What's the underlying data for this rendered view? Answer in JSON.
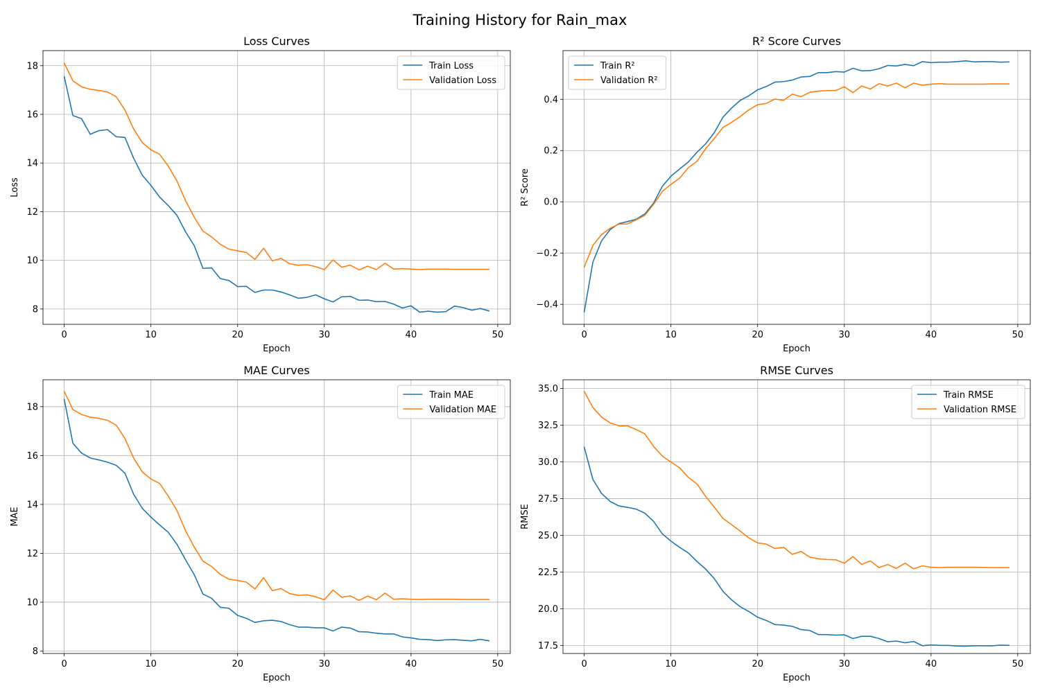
{
  "figure": {
    "suptitle": "Training History for Rain_max"
  },
  "colors": {
    "train": "#1f77b4",
    "validation": "#ff7f0e"
  },
  "chart_data": [
    {
      "type": "line",
      "title": "Loss Curves",
      "xlabel": "Epoch",
      "ylabel": "Loss",
      "grid": true,
      "legend": "upper right",
      "xlim": [
        -2.45,
        51.45
      ],
      "ylim": [
        7.37,
        18.62
      ],
      "xticks": [
        0,
        10,
        20,
        30,
        40,
        50
      ],
      "xtick_labels": [
        "0",
        "10",
        "20",
        "30",
        "40",
        "50"
      ],
      "yticks": [
        8,
        10,
        12,
        14,
        16,
        18
      ],
      "ytick_labels": [
        "8",
        "10",
        "12",
        "14",
        "16",
        "18"
      ],
      "x": [
        0,
        1,
        2,
        3,
        4,
        5,
        6,
        7,
        8,
        9,
        10,
        11,
        12,
        13,
        14,
        15,
        16,
        17,
        18,
        19,
        20,
        21,
        22,
        23,
        24,
        25,
        26,
        27,
        28,
        29,
        30,
        31,
        32,
        33,
        34,
        35,
        36,
        37,
        38,
        39,
        40,
        41,
        42,
        43,
        44,
        45,
        46,
        47,
        48,
        49
      ],
      "series": [
        {
          "name": "Train Loss",
          "color": "#1f77b4",
          "values": [
            17.55,
            15.95,
            15.82,
            15.18,
            15.33,
            15.37,
            15.08,
            15.05,
            14.2,
            13.5,
            13.08,
            12.6,
            12.25,
            11.85,
            11.17,
            10.6,
            9.67,
            9.69,
            9.25,
            9.17,
            8.92,
            8.93,
            8.68,
            8.78,
            8.78,
            8.7,
            8.58,
            8.44,
            8.48,
            8.58,
            8.42,
            8.29,
            8.5,
            8.52,
            8.36,
            8.37,
            8.3,
            8.31,
            8.2,
            8.04,
            8.13,
            7.87,
            7.91,
            7.87,
            7.89,
            8.12,
            8.06,
            7.95,
            8.02,
            7.92
          ]
        },
        {
          "name": "Validation Loss",
          "color": "#ff7f0e",
          "values": [
            18.1,
            17.38,
            17.13,
            17.03,
            16.98,
            16.92,
            16.72,
            16.18,
            15.4,
            14.84,
            14.54,
            14.36,
            13.87,
            13.26,
            12.45,
            11.77,
            11.2,
            10.96,
            10.66,
            10.46,
            10.39,
            10.32,
            10.04,
            10.5,
            9.98,
            10.08,
            9.86,
            9.8,
            9.82,
            9.74,
            9.62,
            10.02,
            9.72,
            9.8,
            9.61,
            9.76,
            9.62,
            9.88,
            9.64,
            9.66,
            9.64,
            9.62,
            9.64,
            9.64,
            9.64,
            9.63,
            9.63,
            9.63,
            9.63,
            9.63
          ]
        }
      ]
    },
    {
      "type": "line",
      "title": "R² Score Curves",
      "xlabel": "Epoch",
      "ylabel": "R² Score",
      "grid": true,
      "legend": "upper left",
      "xlim": [
        -2.45,
        51.45
      ],
      "ylim": [
        -0.478,
        0.59
      ],
      "xticks": [
        0,
        10,
        20,
        30,
        40,
        50
      ],
      "xtick_labels": [
        "0",
        "10",
        "20",
        "30",
        "40",
        "50"
      ],
      "yticks": [
        -0.4,
        -0.2,
        0.0,
        0.2,
        0.4
      ],
      "ytick_labels": [
        "−0.4",
        "−0.2",
        "0.0",
        "0.2",
        "0.4"
      ],
      "x": [
        0,
        1,
        2,
        3,
        4,
        5,
        6,
        7,
        8,
        9,
        10,
        11,
        12,
        13,
        14,
        15,
        16,
        17,
        18,
        19,
        20,
        21,
        22,
        23,
        24,
        25,
        26,
        27,
        28,
        29,
        30,
        31,
        32,
        33,
        34,
        35,
        36,
        37,
        38,
        39,
        40,
        41,
        42,
        43,
        44,
        45,
        46,
        47,
        48,
        49
      ],
      "series": [
        {
          "name": "Train R²",
          "color": "#1f77b4",
          "values": [
            -0.43,
            -0.235,
            -0.152,
            -0.108,
            -0.085,
            -0.077,
            -0.068,
            -0.047,
            -0.005,
            0.06,
            0.1,
            0.128,
            0.155,
            0.193,
            0.226,
            0.27,
            0.33,
            0.366,
            0.396,
            0.414,
            0.437,
            0.45,
            0.467,
            0.469,
            0.475,
            0.487,
            0.489,
            0.504,
            0.504,
            0.508,
            0.506,
            0.521,
            0.511,
            0.512,
            0.519,
            0.532,
            0.53,
            0.536,
            0.531,
            0.547,
            0.543,
            0.545,
            0.545,
            0.547,
            0.55,
            0.546,
            0.547,
            0.547,
            0.545,
            0.546
          ]
        },
        {
          "name": "Validation R²",
          "color": "#ff7f0e",
          "values": [
            -0.255,
            -0.17,
            -0.128,
            -0.103,
            -0.087,
            -0.086,
            -0.07,
            -0.053,
            -0.01,
            0.04,
            0.068,
            0.092,
            0.133,
            0.158,
            0.207,
            0.247,
            0.29,
            0.31,
            0.333,
            0.359,
            0.379,
            0.384,
            0.401,
            0.396,
            0.42,
            0.41,
            0.427,
            0.432,
            0.434,
            0.434,
            0.449,
            0.426,
            0.452,
            0.44,
            0.461,
            0.452,
            0.463,
            0.445,
            0.463,
            0.455,
            0.459,
            0.461,
            0.459,
            0.459,
            0.459,
            0.459,
            0.459,
            0.46,
            0.46,
            0.46
          ]
        }
      ]
    },
    {
      "type": "line",
      "title": "MAE Curves",
      "xlabel": "Epoch",
      "ylabel": "MAE",
      "grid": true,
      "legend": "upper right",
      "xlim": [
        -2.45,
        51.45
      ],
      "ylim": [
        7.9,
        19.1
      ],
      "xticks": [
        0,
        10,
        20,
        30,
        40,
        50
      ],
      "xtick_labels": [
        "0",
        "10",
        "20",
        "30",
        "40",
        "50"
      ],
      "yticks": [
        8,
        10,
        12,
        14,
        16,
        18
      ],
      "ytick_labels": [
        "8",
        "10",
        "12",
        "14",
        "16",
        "18"
      ],
      "x": [
        0,
        1,
        2,
        3,
        4,
        5,
        6,
        7,
        8,
        9,
        10,
        11,
        12,
        13,
        14,
        15,
        16,
        17,
        18,
        19,
        20,
        21,
        22,
        23,
        24,
        25,
        26,
        27,
        28,
        29,
        30,
        31,
        32,
        33,
        34,
        35,
        36,
        37,
        38,
        39,
        40,
        41,
        42,
        43,
        44,
        45,
        46,
        47,
        48,
        49
      ],
      "series": [
        {
          "name": "Train MAE",
          "color": "#1f77b4",
          "values": [
            18.3,
            16.5,
            16.1,
            15.9,
            15.82,
            15.73,
            15.6,
            15.28,
            14.42,
            13.84,
            13.48,
            13.16,
            12.86,
            12.37,
            11.73,
            11.12,
            10.33,
            10.16,
            9.79,
            9.75,
            9.46,
            9.34,
            9.17,
            9.24,
            9.26,
            9.21,
            9.08,
            8.98,
            8.98,
            8.95,
            8.95,
            8.82,
            8.98,
            8.94,
            8.79,
            8.78,
            8.73,
            8.7,
            8.7,
            8.58,
            8.54,
            8.48,
            8.47,
            8.43,
            8.46,
            8.47,
            8.44,
            8.42,
            8.48,
            8.42
          ]
        },
        {
          "name": "Validation MAE",
          "color": "#ff7f0e",
          "values": [
            18.62,
            17.88,
            17.68,
            17.57,
            17.52,
            17.44,
            17.24,
            16.7,
            15.9,
            15.33,
            15.04,
            14.86,
            14.34,
            13.75,
            12.92,
            12.25,
            11.68,
            11.46,
            11.14,
            10.94,
            10.89,
            10.82,
            10.54,
            11.0,
            10.47,
            10.56,
            10.35,
            10.28,
            10.3,
            10.22,
            10.1,
            10.5,
            10.2,
            10.26,
            10.07,
            10.25,
            10.1,
            10.37,
            10.12,
            10.14,
            10.12,
            10.11,
            10.12,
            10.12,
            10.12,
            10.12,
            10.11,
            10.11,
            10.11,
            10.11
          ]
        }
      ]
    },
    {
      "type": "line",
      "title": "RMSE Curves",
      "xlabel": "Epoch",
      "ylabel": "RMSE",
      "grid": true,
      "legend": "upper right",
      "xlim": [
        -2.45,
        51.45
      ],
      "ylim": [
        16.95,
        35.59
      ],
      "xticks": [
        0,
        10,
        20,
        30,
        40,
        50
      ],
      "xtick_labels": [
        "0",
        "10",
        "20",
        "30",
        "40",
        "50"
      ],
      "yticks": [
        17.5,
        20.0,
        22.5,
        25.0,
        27.5,
        30.0,
        32.5,
        35.0
      ],
      "ytick_labels": [
        "17.5",
        "20.0",
        "22.5",
        "25.0",
        "27.5",
        "30.0",
        "32.5",
        "35.0"
      ],
      "x": [
        0,
        1,
        2,
        3,
        4,
        5,
        6,
        7,
        8,
        9,
        10,
        11,
        12,
        13,
        14,
        15,
        16,
        17,
        18,
        19,
        20,
        21,
        22,
        23,
        24,
        25,
        26,
        27,
        28,
        29,
        30,
        31,
        32,
        33,
        34,
        35,
        36,
        37,
        38,
        39,
        40,
        41,
        42,
        43,
        44,
        45,
        46,
        47,
        48,
        49
      ],
      "series": [
        {
          "name": "Train RMSE",
          "color": "#1f77b4",
          "values": [
            31.0,
            28.8,
            27.85,
            27.3,
            27.0,
            26.9,
            26.78,
            26.5,
            25.95,
            25.1,
            24.6,
            24.18,
            23.8,
            23.22,
            22.7,
            22.05,
            21.18,
            20.6,
            20.13,
            19.8,
            19.42,
            19.2,
            18.92,
            18.88,
            18.8,
            18.58,
            18.52,
            18.24,
            18.24,
            18.2,
            18.22,
            17.97,
            18.12,
            18.12,
            17.97,
            17.75,
            17.8,
            17.68,
            17.77,
            17.48,
            17.53,
            17.5,
            17.5,
            17.46,
            17.45,
            17.48,
            17.48,
            17.47,
            17.52,
            17.5
          ]
        },
        {
          "name": "Validation RMSE",
          "color": "#ff7f0e",
          "values": [
            34.8,
            33.7,
            33.05,
            32.65,
            32.45,
            32.45,
            32.2,
            31.9,
            31.05,
            30.4,
            29.98,
            29.6,
            28.95,
            28.5,
            27.65,
            26.92,
            26.15,
            25.72,
            25.28,
            24.82,
            24.48,
            24.4,
            24.1,
            24.18,
            23.7,
            23.9,
            23.52,
            23.4,
            23.35,
            23.33,
            23.1,
            23.55,
            23.02,
            23.25,
            22.8,
            23.01,
            22.75,
            23.1,
            22.72,
            22.92,
            22.82,
            22.8,
            22.82,
            22.82,
            22.82,
            22.82,
            22.81,
            22.8,
            22.8,
            22.8
          ]
        }
      ]
    }
  ]
}
